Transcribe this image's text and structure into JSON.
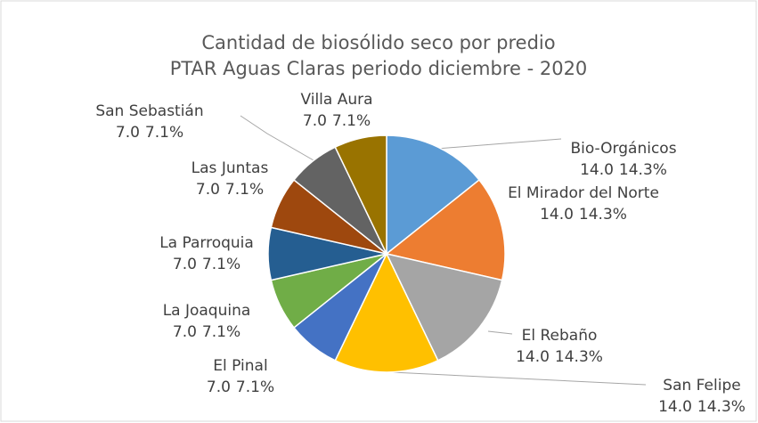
{
  "chart_data": {
    "type": "pie",
    "title": [
      "Cantidad de biosólido seco por predio",
      "PTAR Aguas Claras periodo diciembre - 2020"
    ],
    "categories": [
      "Bio-Orgánicos",
      "El Mirador del Norte",
      "El Rebaño",
      "San Felipe",
      "El Pinal",
      "La Joaquina",
      "La Parroquia",
      "Las Juntas",
      "San Sebastián",
      "Villa Aura"
    ],
    "values": [
      14,
      14,
      14,
      14,
      7,
      7,
      7,
      7,
      7,
      7
    ],
    "value_labels": [
      "14.0",
      "14.0",
      "14.0",
      "14.0",
      "7.0",
      "7.0",
      "7.0",
      "7.0",
      "7.0",
      "7.0"
    ],
    "percent_labels": [
      "14.3%",
      "14.3%",
      "14.3%",
      "14.3%",
      "7.1%",
      "7.1%",
      "7.1%",
      "7.1%",
      "7.1%",
      "7.1%"
    ],
    "colors": [
      "#5b9bd5",
      "#ed7d31",
      "#a5a5a5",
      "#ffc000",
      "#4472c4",
      "#70ad47",
      "#255e91",
      "#9e480e",
      "#636363",
      "#997300"
    ]
  }
}
